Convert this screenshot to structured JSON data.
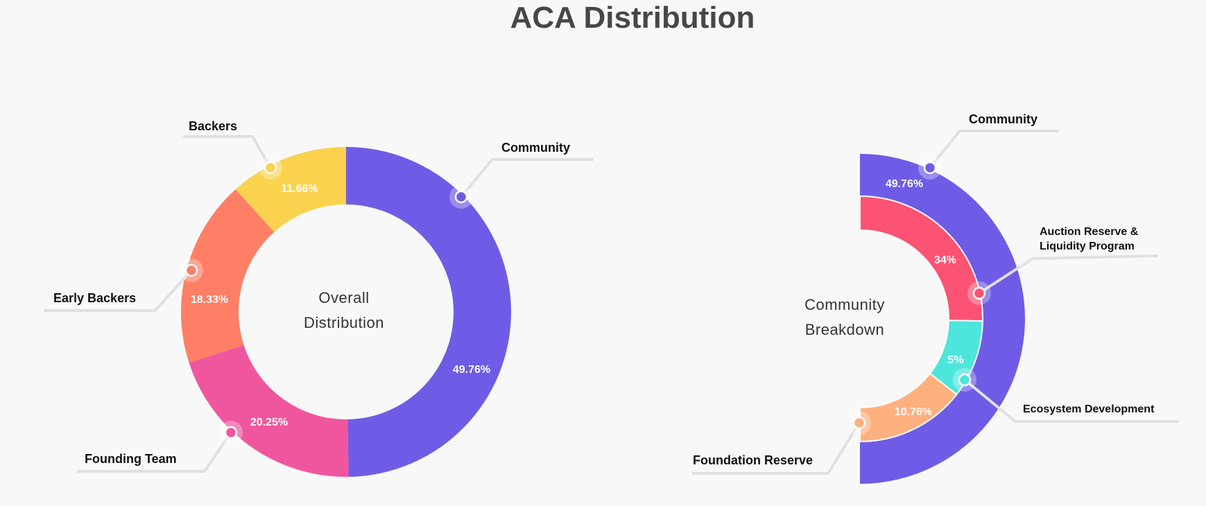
{
  "title": "ACA Distribution",
  "chart_data": [
    {
      "type": "pie",
      "center_label": [
        "Overall",
        "Distribution"
      ],
      "slices": [
        {
          "name": "Community",
          "value": 49.76,
          "label": "49.76%",
          "color": "#6F5CE6"
        },
        {
          "name": "Founding Team",
          "value": 20.25,
          "label": "20.25%",
          "color": "#F0569E"
        },
        {
          "name": "Early Backers",
          "value": 18.33,
          "label": "18.33%",
          "color": "#FF7F66"
        },
        {
          "name": "Backers",
          "value": 11.66,
          "label": "11.66%",
          "color": "#FAD24E"
        }
      ]
    },
    {
      "type": "pie",
      "center_label": [
        "Community",
        "Breakdown"
      ],
      "outer": {
        "name": "Community",
        "value": 49.76,
        "label": "49.76%",
        "color": "#6F5CE6"
      },
      "slices": [
        {
          "name": "Auction Reserve & Liquidity Program",
          "name_lines": [
            "Auction Reserve &",
            "Liquidity Program"
          ],
          "value": 34,
          "label": "34%",
          "color": "#FC5273"
        },
        {
          "name": "Ecosystem Development",
          "value": 5,
          "label": "5%",
          "color": "#4CE6DC"
        },
        {
          "name": "Foundation Reserve",
          "value": 10.76,
          "label": "10.76%",
          "color": "#FFB07F"
        }
      ]
    }
  ]
}
